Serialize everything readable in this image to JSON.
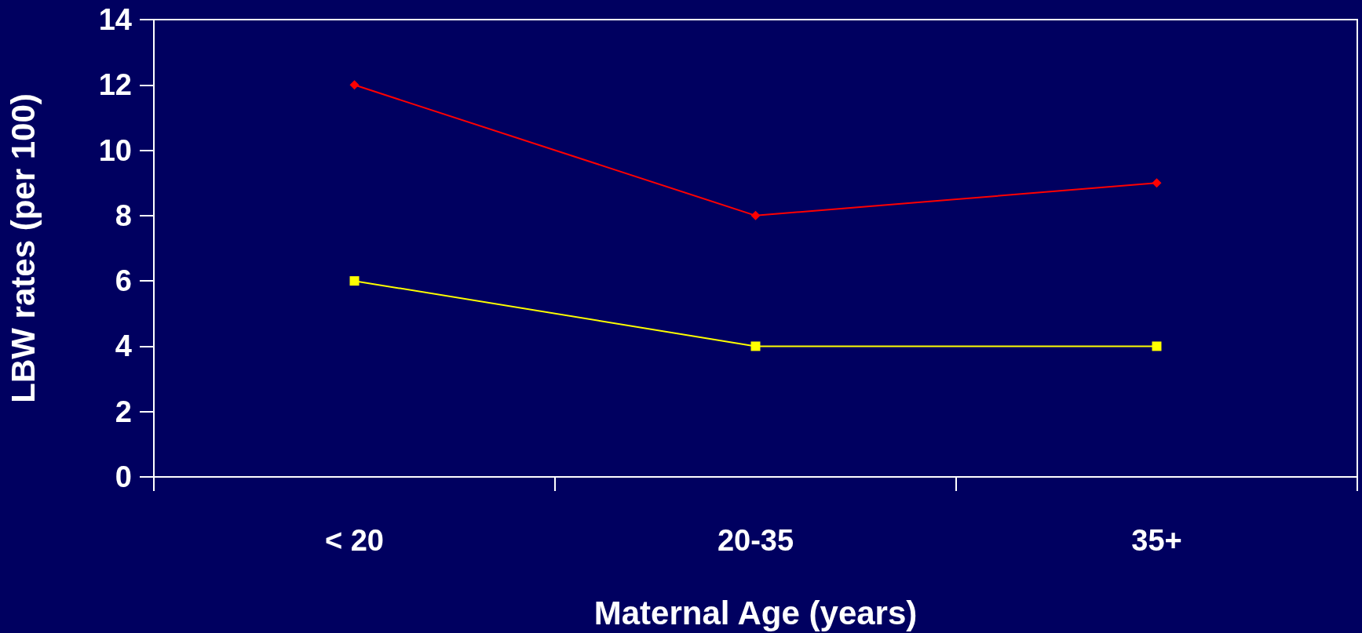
{
  "chart_data": {
    "type": "line",
    "xlabel": "Maternal Age (years)",
    "ylabel": "LBW rates (per 100)",
    "categories": [
      "< 20",
      "20-35",
      "35+"
    ],
    "series": [
      {
        "color": "#ff0000",
        "marker": "diamond",
        "values": [
          12,
          8,
          9
        ]
      },
      {
        "color": "#ffff00",
        "marker": "square",
        "values": [
          6,
          4,
          4
        ]
      }
    ],
    "ylim": [
      0,
      14
    ],
    "yticks": [
      0,
      2,
      4,
      6,
      8,
      10,
      12,
      14
    ],
    "grid": false,
    "line_style": "solid"
  }
}
